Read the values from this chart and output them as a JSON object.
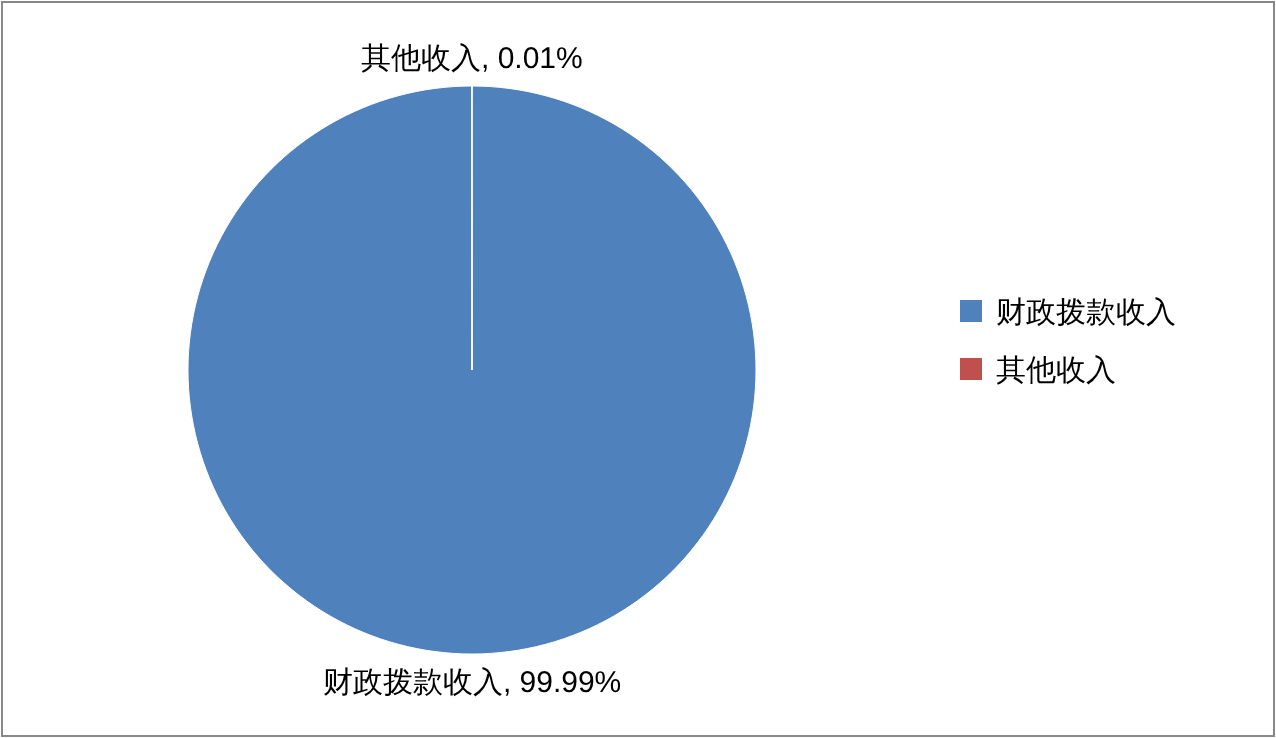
{
  "chart_data": {
    "type": "pie",
    "categories": [
      "财政拨款收入",
      "其他收入"
    ],
    "values": [
      99.99,
      0.01
    ],
    "colors": [
      "#4f81bd",
      "#c0504d"
    ],
    "value_labels": [
      "财政拨款收入, 99.99%",
      "其他收入, 0.01%"
    ],
    "legend": "right"
  }
}
